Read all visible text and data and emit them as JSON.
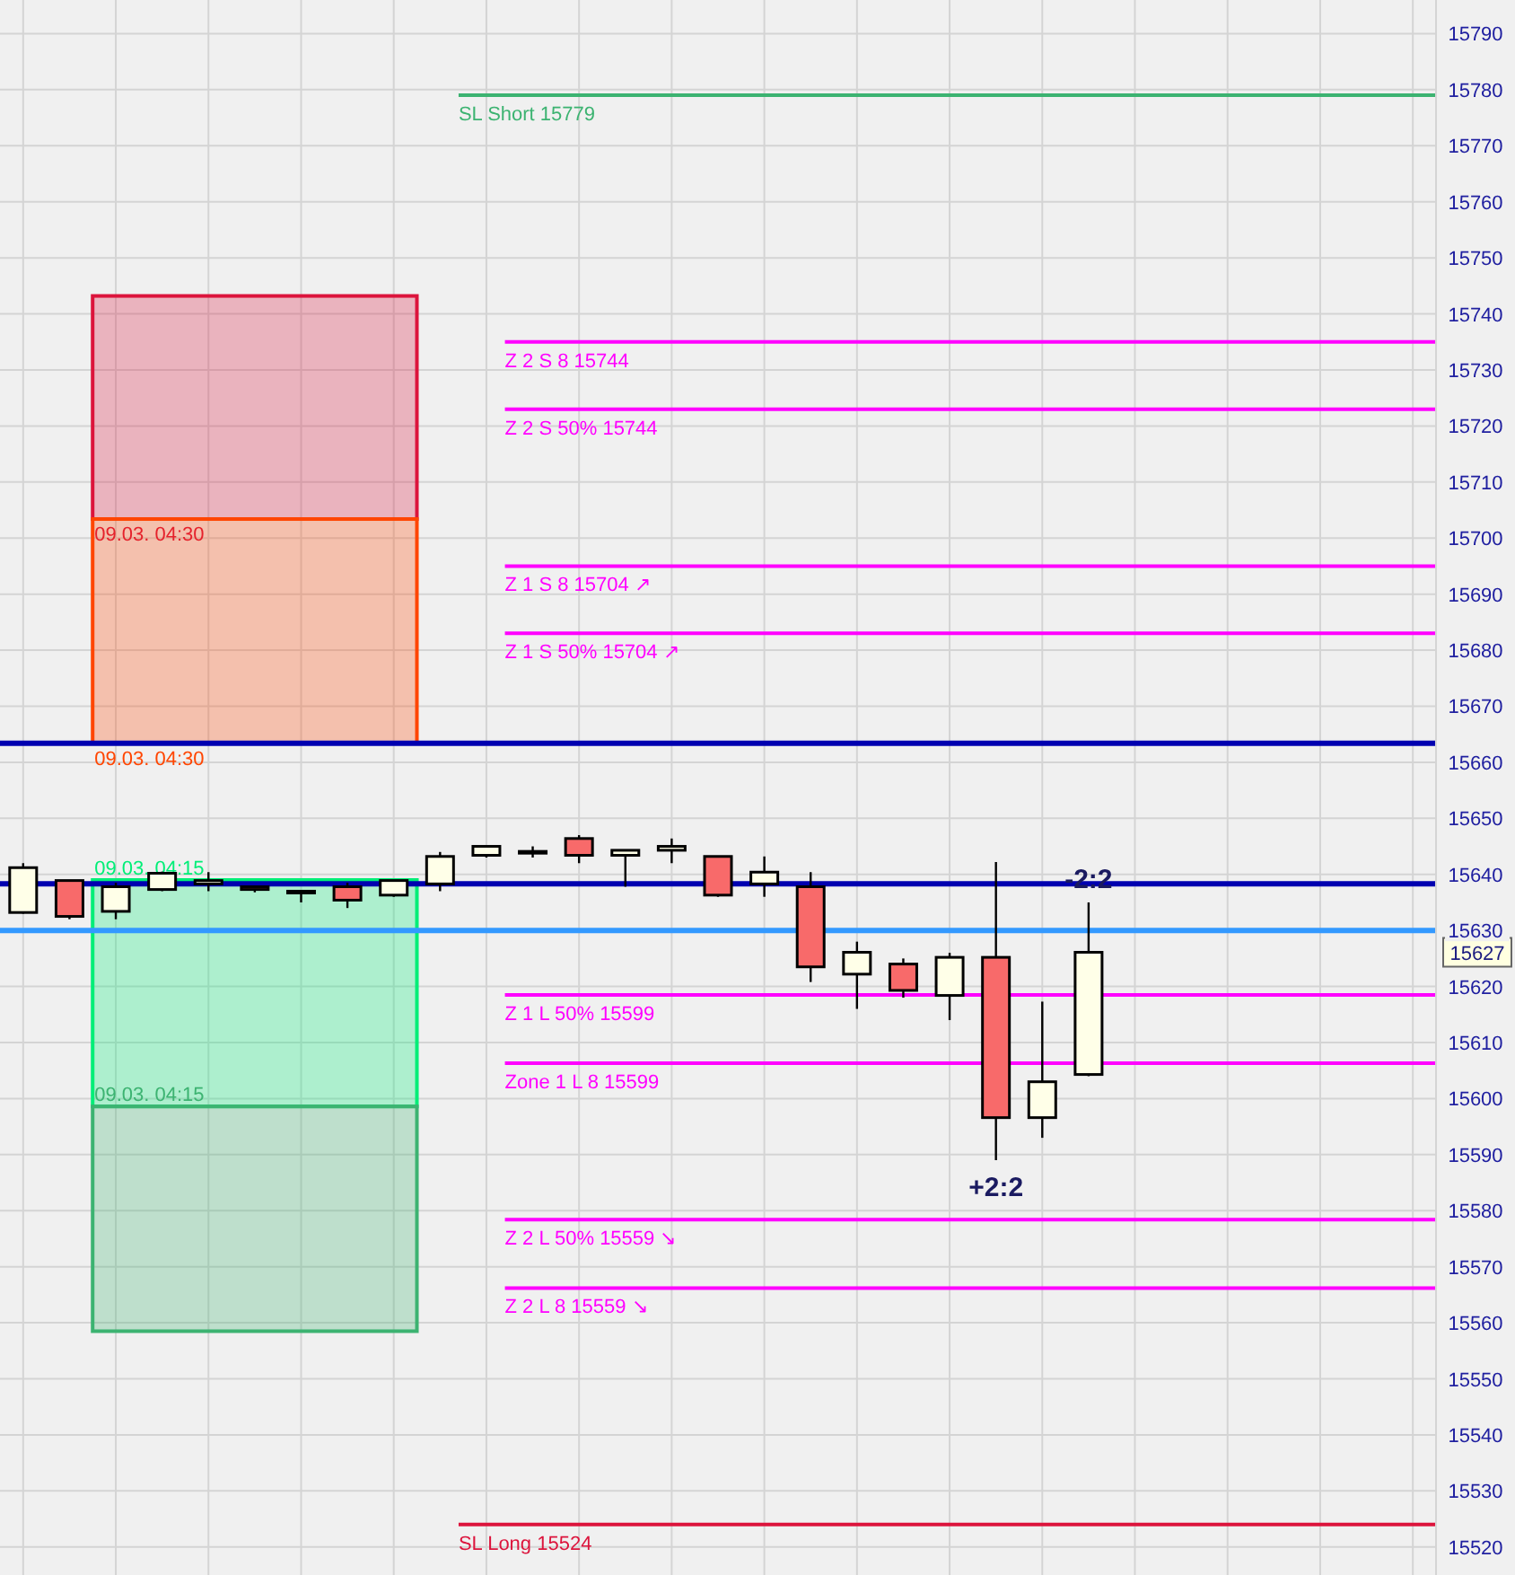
{
  "chart_data": {
    "type": "candlestick",
    "categories": [
      null,
      null,
      null,
      null,
      null,
      null,
      null,
      null,
      null,
      null,
      null,
      null,
      null,
      null,
      null,
      null,
      null,
      null,
      null,
      null,
      null,
      null,
      null,
      null,
      null,
      null,
      null,
      null,
      null,
      null,
      null
    ],
    "ohlc": [
      [
        15633.2,
        15642,
        15633,
        15641.2
      ],
      [
        15638.9,
        15639,
        15632,
        15632.5
      ],
      [
        15633.4,
        15638.5,
        15632,
        15637.8
      ],
      [
        15637.3,
        15640.5,
        15637,
        15640.2
      ],
      [
        15638.3,
        15640.4,
        15637,
        15638.9
      ],
      [
        15637.8,
        15637.8,
        15636.8,
        15637.3
      ],
      [
        15637,
        15637,
        15635,
        15637
      ],
      [
        15637.8,
        15638.5,
        15634,
        15635.4
      ],
      [
        15636.3,
        15638.9,
        15636,
        15638.9
      ],
      [
        15638.3,
        15644,
        15637,
        15643.2
      ],
      [
        15643.4,
        15645,
        15643,
        15645
      ],
      [
        15644.1,
        15645,
        15643,
        15644.1
      ],
      [
        15646.4,
        15647,
        15642,
        15643.4
      ],
      [
        15643.4,
        15644.3,
        15637.8,
        15644.3
      ],
      [
        15644.3,
        15646.4,
        15642,
        15645
      ],
      [
        15643.2,
        15643.2,
        15636,
        15636.3
      ],
      [
        15638.3,
        15643.2,
        15636,
        15640.4
      ],
      [
        15637.8,
        15640.4,
        15620.8,
        15623.5
      ],
      [
        15622.2,
        15628,
        15616,
        15626.1
      ],
      [
        15624,
        15625,
        15618,
        15619.3
      ],
      [
        15618.4,
        15626,
        15614,
        15625.2
      ],
      [
        15625.2,
        15642.2,
        15589,
        15596.6
      ],
      [
        15596.6,
        15617.3,
        15593,
        15603
      ],
      [
        15604.3,
        15635,
        15604,
        15626.1
      ],
      null,
      null,
      null,
      null,
      null,
      null,
      null
    ],
    "colors": [
      "#ffffe8",
      "#f86a6a",
      "#ffffe8",
      "#ffffe8",
      "#ffffe8",
      "#f86a6a",
      "#ffffe8",
      "#f86a6a",
      "#ffffe8",
      "#ffffe8",
      "#ffffe8",
      "#ffffe8",
      "#f86a6a",
      "#ffffe8",
      "#ffffe8",
      "#f86a6a",
      "#ffffe8",
      "#f86a6a",
      "#ffffe8",
      "#f86a6a",
      "#ffffe8",
      "#f86a6a",
      "#ffffe8",
      "#ffffe8",
      null,
      null,
      null,
      null,
      null,
      null,
      null
    ],
    "ylim": [
      15515,
      15796
    ],
    "yticks": [
      15520,
      15530,
      15540,
      15550,
      15560,
      15570,
      15580,
      15590,
      15600,
      15610,
      15620,
      15630,
      15640,
      15650,
      15660,
      15670,
      15680,
      15690,
      15700,
      15710,
      15720,
      15730,
      15740,
      15750,
      15760,
      15770,
      15780,
      15790
    ],
    "grid": true,
    "ref_lines": [
      {
        "axis": "y",
        "value": 15779,
        "label": "SL Short 15779",
        "color": "#3cb371"
      },
      {
        "axis": "y",
        "value": 15735,
        "label": "Z 2 S 8 15744",
        "color": "#ff00ff"
      },
      {
        "axis": "y",
        "value": 15723,
        "label": "Z 2 S 50% 15744",
        "color": "#ff00ff"
      },
      {
        "axis": "y",
        "value": 15695,
        "label": "Z 1 S 8 15704 ↗",
        "color": "#ff00ff"
      },
      {
        "axis": "y",
        "value": 15683,
        "label": "Z 1 S 50% 15704 ↗",
        "color": "#ff00ff"
      },
      {
        "axis": "y",
        "value": 15663.4,
        "color": "#0000b0"
      },
      {
        "axis": "y",
        "value": 15638.3,
        "color": "#0000b0"
      },
      {
        "axis": "y",
        "value": 15630,
        "color": "#3399ff"
      },
      {
        "axis": "y",
        "value": 15618.5,
        "label": "Z 1 L 50%  15599",
        "color": "#ff00ff"
      },
      {
        "axis": "y",
        "value": 15606.3,
        "label": "Zone 1 L 8 15599",
        "color": "#ff00ff"
      },
      {
        "axis": "y",
        "value": 15578.4,
        "label": "Z 2 L 50% 15559 ↘",
        "color": "#ff00ff"
      },
      {
        "axis": "y",
        "value": 15566.2,
        "label": "Z 2 L 8 15559 ↘",
        "color": "#ff00ff"
      },
      {
        "axis": "y",
        "value": 15524,
        "label": "SL Long 15524",
        "color": "#dc143c"
      }
    ],
    "bands": [
      {
        "axis": "y",
        "from": 15703.4,
        "to": 15743.2,
        "label": "09.03. 04:30",
        "color": "#dc143c"
      },
      {
        "axis": "y",
        "from": 15663.4,
        "to": 15703.4,
        "label": "09.03. 04:30",
        "color": "#ff4500"
      },
      {
        "axis": "y",
        "from": 15598.6,
        "to": 15639,
        "label": "09.03. 04:15",
        "color": "#00ee77"
      },
      {
        "axis": "y",
        "from": 15558.5,
        "to": 15598.6,
        "label": "09.03. 04:15",
        "color": "#3cb371"
      }
    ],
    "annotations": [
      "-2:2",
      "+2:2",
      "15627"
    ]
  }
}
